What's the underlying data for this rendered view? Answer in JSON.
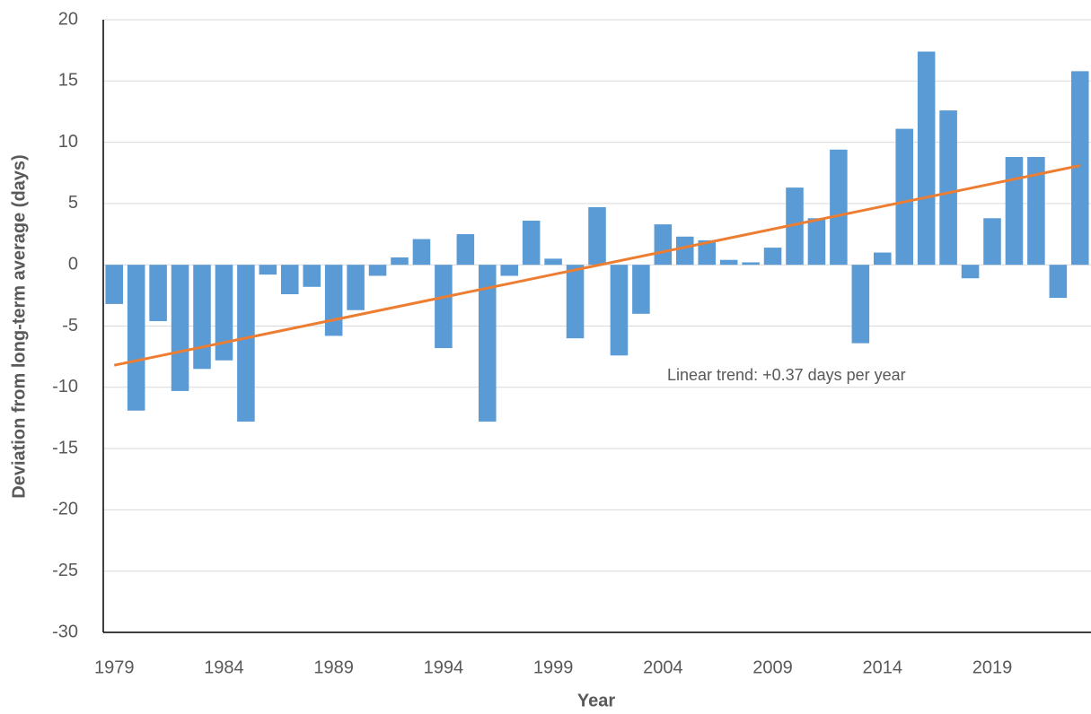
{
  "chart_data": {
    "type": "bar",
    "x_label": "Year",
    "y_label": "Deviation from long-term average (days)",
    "categories": [
      "1979",
      null,
      null,
      null,
      null,
      "1984",
      null,
      null,
      null,
      null,
      "1989",
      null,
      null,
      null,
      null,
      "1994",
      null,
      null,
      null,
      null,
      "1999",
      null,
      null,
      null,
      null,
      "2004",
      null,
      null,
      null,
      null,
      "2009",
      null,
      null,
      null,
      null,
      "2014",
      null,
      null,
      null,
      null,
      "2019",
      null,
      null,
      null,
      null
    ],
    "values": [
      -3.2,
      -11.9,
      -4.6,
      -10.3,
      -8.5,
      -7.8,
      -12.8,
      -0.8,
      -2.4,
      -1.8,
      -5.8,
      -3.7,
      -0.9,
      0.6,
      2.1,
      -6.8,
      2.5,
      -12.8,
      -0.9,
      3.6,
      0.5,
      -6.0,
      4.7,
      -7.4,
      -4.0,
      3.3,
      2.3,
      2.0,
      0.4,
      0.2,
      1.4,
      6.3,
      3.8,
      9.4,
      -6.4,
      1.0,
      11.1,
      17.4,
      12.6,
      -1.1,
      3.8,
      8.8,
      8.8,
      -2.7,
      15.8
    ],
    "color": "#5b9bd5",
    "trend": {
      "color": "#ed7d31",
      "values": [
        -8.2,
        8.1
      ]
    },
    "annotation": "Linear trend: +0.37 days per year",
    "ylim": [
      -30,
      20
    ],
    "yticks": [
      -30,
      -25,
      -20,
      -15,
      -10,
      -5,
      0,
      5,
      10,
      15,
      20
    ],
    "grid": true
  }
}
